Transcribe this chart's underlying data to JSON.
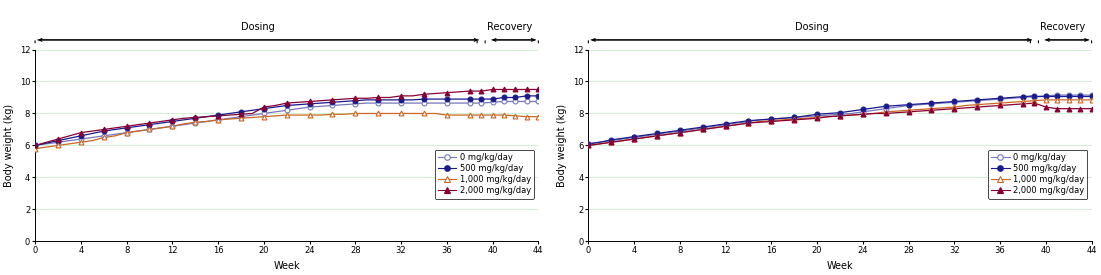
{
  "male": {
    "weeks": [
      0,
      1,
      2,
      3,
      4,
      5,
      6,
      7,
      8,
      9,
      10,
      11,
      12,
      13,
      14,
      15,
      16,
      17,
      18,
      19,
      20,
      21,
      22,
      23,
      24,
      25,
      26,
      27,
      28,
      29,
      30,
      31,
      32,
      33,
      34,
      35,
      36,
      37,
      38,
      39,
      40,
      41,
      42,
      43,
      44
    ],
    "dose0": [
      6.0,
      6.1,
      6.2,
      6.3,
      6.4,
      6.5,
      6.6,
      6.7,
      6.8,
      6.9,
      7.0,
      7.1,
      7.2,
      7.3,
      7.4,
      7.5,
      7.6,
      7.7,
      7.8,
      7.9,
      8.0,
      8.1,
      8.2,
      8.3,
      8.4,
      8.45,
      8.5,
      8.55,
      8.6,
      8.65,
      8.65,
      8.65,
      8.65,
      8.65,
      8.65,
      8.65,
      8.65,
      8.65,
      8.65,
      8.65,
      8.7,
      8.75,
      8.75,
      8.75,
      8.75
    ],
    "dose500": [
      6.0,
      6.15,
      6.3,
      6.45,
      6.6,
      6.75,
      6.9,
      7.0,
      7.1,
      7.2,
      7.3,
      7.4,
      7.5,
      7.6,
      7.7,
      7.8,
      7.9,
      8.0,
      8.1,
      8.2,
      8.3,
      8.4,
      8.5,
      8.55,
      8.6,
      8.65,
      8.7,
      8.75,
      8.8,
      8.85,
      8.85,
      8.85,
      8.85,
      8.85,
      8.9,
      8.9,
      8.9,
      8.9,
      8.9,
      8.9,
      8.9,
      9.0,
      9.0,
      9.1,
      9.1
    ],
    "dose1000": [
      5.8,
      5.9,
      6.0,
      6.1,
      6.2,
      6.3,
      6.5,
      6.6,
      6.8,
      6.9,
      7.0,
      7.1,
      7.2,
      7.35,
      7.45,
      7.5,
      7.6,
      7.65,
      7.7,
      7.75,
      7.8,
      7.85,
      7.9,
      7.9,
      7.9,
      7.9,
      7.95,
      7.95,
      8.0,
      8.0,
      8.0,
      8.0,
      8.0,
      8.0,
      8.0,
      8.0,
      7.9,
      7.9,
      7.9,
      7.9,
      7.9,
      7.9,
      7.85,
      7.8,
      7.8
    ],
    "dose2000": [
      6.0,
      6.2,
      6.4,
      6.6,
      6.8,
      6.9,
      7.0,
      7.1,
      7.2,
      7.3,
      7.4,
      7.5,
      7.6,
      7.7,
      7.75,
      7.8,
      7.85,
      7.9,
      7.95,
      8.0,
      8.4,
      8.5,
      8.65,
      8.7,
      8.75,
      8.8,
      8.85,
      8.9,
      8.95,
      8.95,
      9.0,
      9.0,
      9.1,
      9.1,
      9.2,
      9.25,
      9.3,
      9.35,
      9.4,
      9.4,
      9.5,
      9.5,
      9.5,
      9.5,
      9.5
    ]
  },
  "female": {
    "weeks": [
      0,
      1,
      2,
      3,
      4,
      5,
      6,
      7,
      8,
      9,
      10,
      11,
      12,
      13,
      14,
      15,
      16,
      17,
      18,
      19,
      20,
      21,
      22,
      23,
      24,
      25,
      26,
      27,
      28,
      29,
      30,
      31,
      32,
      33,
      34,
      35,
      36,
      37,
      38,
      39,
      40,
      41,
      42,
      43,
      44
    ],
    "dose0": [
      6.1,
      6.2,
      6.3,
      6.4,
      6.5,
      6.6,
      6.7,
      6.8,
      6.9,
      7.0,
      7.1,
      7.2,
      7.3,
      7.4,
      7.5,
      7.6,
      7.65,
      7.7,
      7.75,
      7.8,
      7.85,
      7.9,
      7.95,
      8.0,
      8.1,
      8.2,
      8.3,
      8.4,
      8.5,
      8.55,
      8.6,
      8.65,
      8.7,
      8.75,
      8.8,
      8.85,
      8.9,
      8.95,
      9.0,
      9.05,
      9.1,
      9.15,
      9.15,
      9.15,
      9.15
    ],
    "dose500": [
      6.1,
      6.2,
      6.35,
      6.45,
      6.55,
      6.65,
      6.75,
      6.85,
      6.95,
      7.05,
      7.15,
      7.25,
      7.35,
      7.45,
      7.55,
      7.6,
      7.65,
      7.7,
      7.75,
      7.85,
      7.95,
      8.0,
      8.05,
      8.15,
      8.25,
      8.35,
      8.45,
      8.5,
      8.55,
      8.6,
      8.65,
      8.7,
      8.75,
      8.8,
      8.85,
      8.9,
      8.95,
      9.0,
      9.05,
      9.1,
      9.1,
      9.1,
      9.1,
      9.1,
      9.1
    ],
    "dose1000": [
      6.0,
      6.1,
      6.2,
      6.3,
      6.4,
      6.5,
      6.6,
      6.7,
      6.8,
      6.9,
      7.0,
      7.1,
      7.2,
      7.3,
      7.4,
      7.5,
      7.55,
      7.6,
      7.65,
      7.7,
      7.75,
      7.8,
      7.85,
      7.9,
      7.95,
      8.0,
      8.1,
      8.15,
      8.2,
      8.25,
      8.3,
      8.35,
      8.4,
      8.5,
      8.55,
      8.6,
      8.65,
      8.7,
      8.75,
      8.8,
      8.85,
      8.85,
      8.85,
      8.85,
      8.85
    ],
    "dose2000": [
      6.0,
      6.1,
      6.2,
      6.3,
      6.4,
      6.5,
      6.6,
      6.7,
      6.8,
      6.9,
      7.0,
      7.1,
      7.2,
      7.3,
      7.4,
      7.45,
      7.5,
      7.55,
      7.6,
      7.65,
      7.7,
      7.8,
      7.85,
      7.9,
      7.95,
      8.0,
      8.0,
      8.05,
      8.1,
      8.15,
      8.2,
      8.25,
      8.3,
      8.35,
      8.4,
      8.45,
      8.5,
      8.55,
      8.6,
      8.65,
      8.4,
      8.3,
      8.3,
      8.3,
      8.3
    ]
  },
  "colors": {
    "dose0": "#7777bb",
    "dose500": "#1a1a8c",
    "dose1000": "#cc6622",
    "dose2000": "#880033"
  },
  "legend_labels": [
    "0 mg/kg/day",
    "500 mg/kg/day",
    "1,000 mg/kg/day",
    "2,000 mg/kg/day"
  ],
  "ylabel": "Body weight (kg)",
  "xlabel": "Week",
  "ylim": [
    0,
    12
  ],
  "yticks": [
    0,
    2,
    4,
    6,
    8,
    10,
    12
  ],
  "xlim": [
    0,
    44
  ],
  "xticks": [
    0,
    4,
    8,
    12,
    16,
    20,
    24,
    28,
    32,
    36,
    40,
    44
  ],
  "dosing_end": 39,
  "recovery_end": 44,
  "marker_interval": 2
}
